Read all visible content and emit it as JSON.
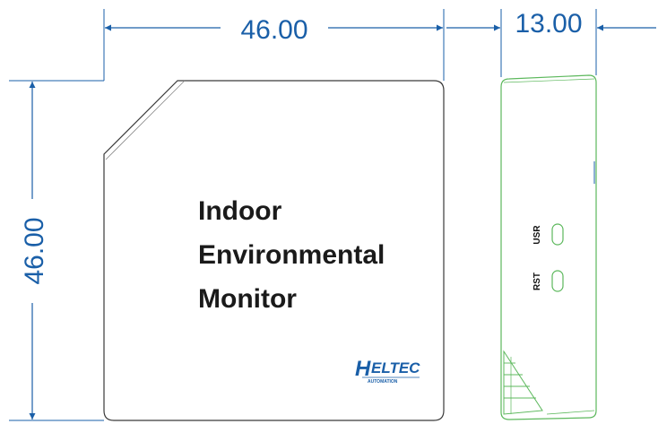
{
  "dimensions": {
    "front_width": "46.00",
    "front_height": "46.00",
    "side_depth": "13.00"
  },
  "product": {
    "title_lines": [
      "Indoor",
      "Environmental",
      "Monitor"
    ]
  },
  "logo": {
    "brand_initial": "H",
    "brand_rest": "ELTEC",
    "tagline": "AUTOMATION"
  },
  "side_view": {
    "port_labels": [
      "USR",
      "RST"
    ]
  },
  "colors": {
    "dimension_line": "#1a5fa8",
    "front_outline": "#3a3a3a",
    "side_outline": "#5cb85c",
    "title_text": "#1a1a1a"
  },
  "icons": {
    "logo": "heltec-logo-icon",
    "button": "side-button-icon"
  }
}
